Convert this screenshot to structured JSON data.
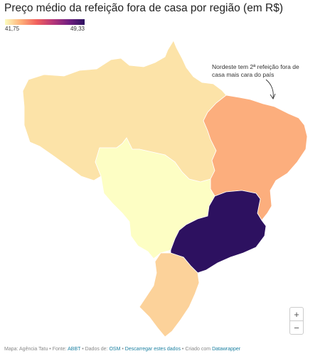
{
  "title": "Preço médio da refeição fora de casa por região (em R$)",
  "legend": {
    "min_label": "41,75",
    "max_label": "49,33",
    "min_color": "#fcfdbf",
    "max_color": "#2d1160"
  },
  "regions": {
    "norte": {
      "color": "#fce3a8"
    },
    "nordeste": {
      "color": "#fcae7d"
    },
    "centro_oeste": {
      "color": "#fdfec4"
    },
    "sudeste": {
      "color": "#2d1160"
    },
    "sul": {
      "color": "#fcd29a"
    }
  },
  "annotation": "Nordeste tem 2ª refeição fora de casa mais cara do país",
  "zoom": {
    "in": "+",
    "out": "−"
  },
  "footer": {
    "map_credit": "Mapa: Agência Tatu",
    "sep1": " • ",
    "source_prefix": "Fonte: ",
    "source_link": "ABBT",
    "sep2": " • ",
    "data_prefix": "Dados de: ",
    "data_link": "OSM",
    "sep3": " • ",
    "download_link": "Descarregar estes dados",
    "sep4": " • ",
    "created_prefix": "Criado com ",
    "created_link": "Datawrapper"
  }
}
